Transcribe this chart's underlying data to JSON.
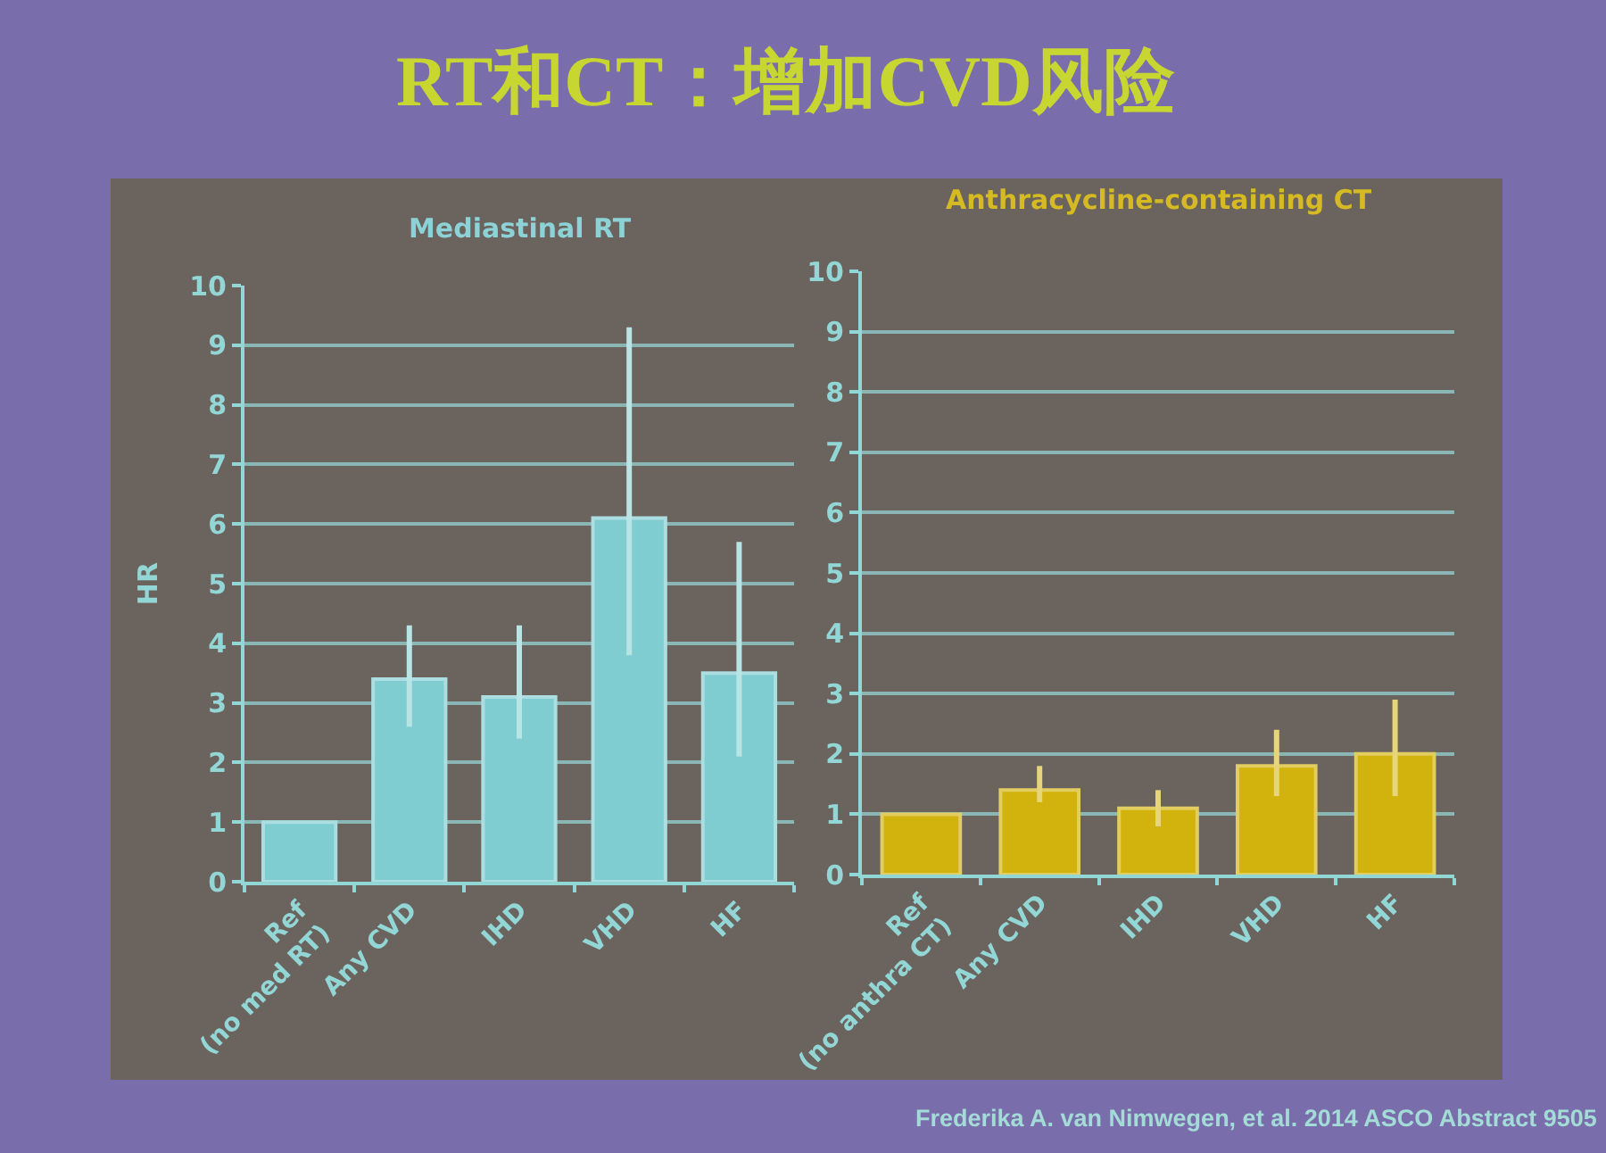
{
  "chart_data": [
    {
      "type": "other",
      "title": "RT和CT：增加CVD风险",
      "annotations": [
        "Frederika A. van Nimwegen, et al. 2014 ASCO Abstract 9505"
      ]
    },
    {
      "type": "bar",
      "title": "Mediastinal RT",
      "ylabel": "HR",
      "categories": [
        "Ref\n(no med RT)",
        "Any CVD",
        "IHD",
        "VHD",
        "HF"
      ],
      "series": [
        {
          "color": "#7fcdd1",
          "values": [
            1,
            3.4,
            3.1,
            6.1,
            3.5
          ],
          "errors": [
            null,
            [
              2.6,
              4.3
            ],
            [
              2.4,
              4.3
            ],
            [
              3.8,
              9.3
            ],
            [
              2.1,
              5.7
            ]
          ]
        }
      ],
      "ylim": [
        0,
        10
      ],
      "yticks": [
        0,
        1,
        2,
        3,
        4,
        5,
        6,
        7,
        8,
        9,
        10
      ],
      "grid": "y"
    },
    {
      "type": "bar",
      "title": "Anthracycline-containing CT",
      "categories": [
        "Ref\n(no anthra CT)",
        "Any CVD",
        "IHD",
        "VHD",
        "HF"
      ],
      "series": [
        {
          "color": "#d2b20c",
          "values": [
            1,
            1.4,
            1.1,
            1.8,
            2.0
          ],
          "errors": [
            null,
            [
              1.2,
              1.8
            ],
            [
              0.8,
              1.4
            ],
            [
              1.3,
              2.4
            ],
            [
              1.3,
              2.9
            ]
          ]
        }
      ],
      "ylim": [
        0,
        10
      ],
      "yticks": [
        0,
        1,
        2,
        3,
        4,
        5,
        6,
        7,
        8,
        9,
        10
      ],
      "grid": "y"
    }
  ]
}
